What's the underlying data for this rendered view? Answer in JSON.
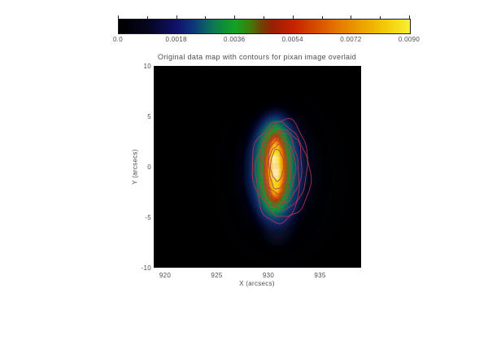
{
  "figure": {
    "title": "Original data map with contours for pixan image overlaid",
    "xlabel": "X (arcsecs)",
    "ylabel": "Y (arcsecs)"
  },
  "colorbar": {
    "min": 0.0,
    "max": 0.009,
    "tick_labels": [
      "0.0",
      "0.0018",
      "0.0036",
      "0.0054",
      "0.0072",
      "0.0090"
    ],
    "gradient_stops": [
      [
        "0%",
        "#000000"
      ],
      [
        "10%",
        "#05051f"
      ],
      [
        "20%",
        "#10126b"
      ],
      [
        "26%",
        "#0d3a7a"
      ],
      [
        "31%",
        "#0c6a60"
      ],
      [
        "36%",
        "#0f8f38"
      ],
      [
        "40%",
        "#12a224"
      ],
      [
        "45%",
        "#3f7e0a"
      ],
      [
        "49%",
        "#6f4206"
      ],
      [
        "53%",
        "#9a1e04"
      ],
      [
        "60%",
        "#c62301"
      ],
      [
        "68%",
        "#d64e00"
      ],
      [
        "76%",
        "#e57c00"
      ],
      [
        "84%",
        "#eda400"
      ],
      [
        "92%",
        "#f3cc08"
      ],
      [
        "100%",
        "#f8ef34"
      ]
    ]
  },
  "chart_data": {
    "type": "heatmap",
    "title": "Original data map with contours for pixan image overlaid",
    "xlabel": "X (arcsecs)",
    "ylabel": "Y (arcsecs)",
    "x_range": [
      918.9,
      938.98
    ],
    "y_range": [
      -10,
      10
    ],
    "x_ticks": [
      920,
      925,
      930,
      935
    ],
    "y_ticks": [
      10,
      5,
      0,
      -5,
      -10
    ],
    "colorbar_ticks": [
      0.0,
      0.0018,
      0.0036,
      0.0054,
      0.0072,
      0.009
    ],
    "legend": "none",
    "grid": false,
    "source_peak": {
      "x_arcsec": 930.7,
      "y_arcsec": -0.2,
      "peak_value": 0.009
    },
    "image_layers": [
      {
        "name": "halo-glow",
        "kind": "gradient",
        "cx": 930.75,
        "cy": -0.45,
        "rx": 4.7,
        "ry": 8.1,
        "blur": 6,
        "opacity": 0.9
      },
      {
        "name": "south-tail",
        "kind": "fill",
        "fill": "#0b1534",
        "cx": 930.9,
        "cy": -4.2,
        "rx": 1.6,
        "ry": 3.4,
        "blur": 7,
        "opacity": 0.8
      },
      {
        "name": "blue-level",
        "kind": "fill",
        "fill": "#18297e",
        "cx": 930.7,
        "cy": -0.3,
        "rx": 2.6,
        "ry": 5.7,
        "blur": 5,
        "opacity": 0.9
      },
      {
        "name": "teal-level",
        "kind": "fill",
        "fill": "#0c7264",
        "cx": 930.65,
        "cy": -0.2,
        "rx": 2.0,
        "ry": 4.9,
        "blur": 4,
        "opacity": 0.95
      },
      {
        "name": "green-level",
        "kind": "fill",
        "fill": "#17a226",
        "cx": 930.65,
        "cy": -0.2,
        "rx": 1.55,
        "ry": 4.3,
        "blur": 3.5,
        "opacity": 1
      },
      {
        "name": "red-level",
        "kind": "fill",
        "fill": "#c92803",
        "cx": 930.68,
        "cy": -0.15,
        "rx": 1.1,
        "ry": 3.5,
        "blur": 3,
        "opacity": 1
      },
      {
        "name": "orange-level",
        "kind": "fill",
        "fill": "#ef7b00",
        "cx": 930.68,
        "cy": -0.15,
        "rx": 0.85,
        "ry": 3.0,
        "blur": 2.5,
        "opacity": 1
      },
      {
        "name": "yellow-core",
        "kind": "fill",
        "fill": "#f6da12",
        "cx": 930.68,
        "cy": -0.15,
        "rx": 0.6,
        "ry": 2.5,
        "blur": 2.5,
        "opacity": 1
      },
      {
        "name": "core-spot-n",
        "kind": "fill",
        "fill": "#fff2b0",
        "cx": 930.6,
        "cy": 0.7,
        "rx": 0.32,
        "ry": 0.6,
        "blur": 2,
        "opacity": 0.95
      },
      {
        "name": "core-spot-s",
        "kind": "fill",
        "fill": "#ffedcc",
        "cx": 930.7,
        "cy": -0.55,
        "rx": 0.34,
        "ry": 0.7,
        "blur": 2,
        "opacity": 0.95
      },
      {
        "name": "core-spot-c",
        "kind": "fill",
        "fill": "#ffd2c2",
        "cx": 930.65,
        "cy": 0.1,
        "rx": 0.2,
        "ry": 0.35,
        "blur": 1.5,
        "opacity": 0.9
      }
    ],
    "overlay_contours": {
      "color": "#b03a44",
      "count": 8,
      "levels": [
        {
          "cx": 931.25,
          "cy": -0.4,
          "rx": 2.8,
          "ry": 5.08
        },
        {
          "cx": 931.25,
          "cy": -0.32,
          "rx": 2.42,
          "ry": 4.52
        },
        {
          "cx": 931.2,
          "cy": -0.24,
          "rx": 2.08,
          "ry": 4.07
        },
        {
          "cx": 931.15,
          "cy": -0.24,
          "rx": 1.78,
          "ry": 3.63
        },
        {
          "cx": 931.1,
          "cy": -0.16,
          "rx": 1.48,
          "ry": 3.19
        },
        {
          "cx": 931.05,
          "cy": -0.08,
          "rx": 1.18,
          "ry": 2.7
        },
        {
          "cx": 930.95,
          "cy": 0.0,
          "rx": 0.9,
          "ry": 2.18
        },
        {
          "cx": 930.85,
          "cy": 0.16,
          "rx": 0.62,
          "ry": 1.53
        }
      ]
    },
    "colors": {
      "background": "#ffffff",
      "text": "#4d4d4d",
      "contour": "#b03a44"
    }
  }
}
